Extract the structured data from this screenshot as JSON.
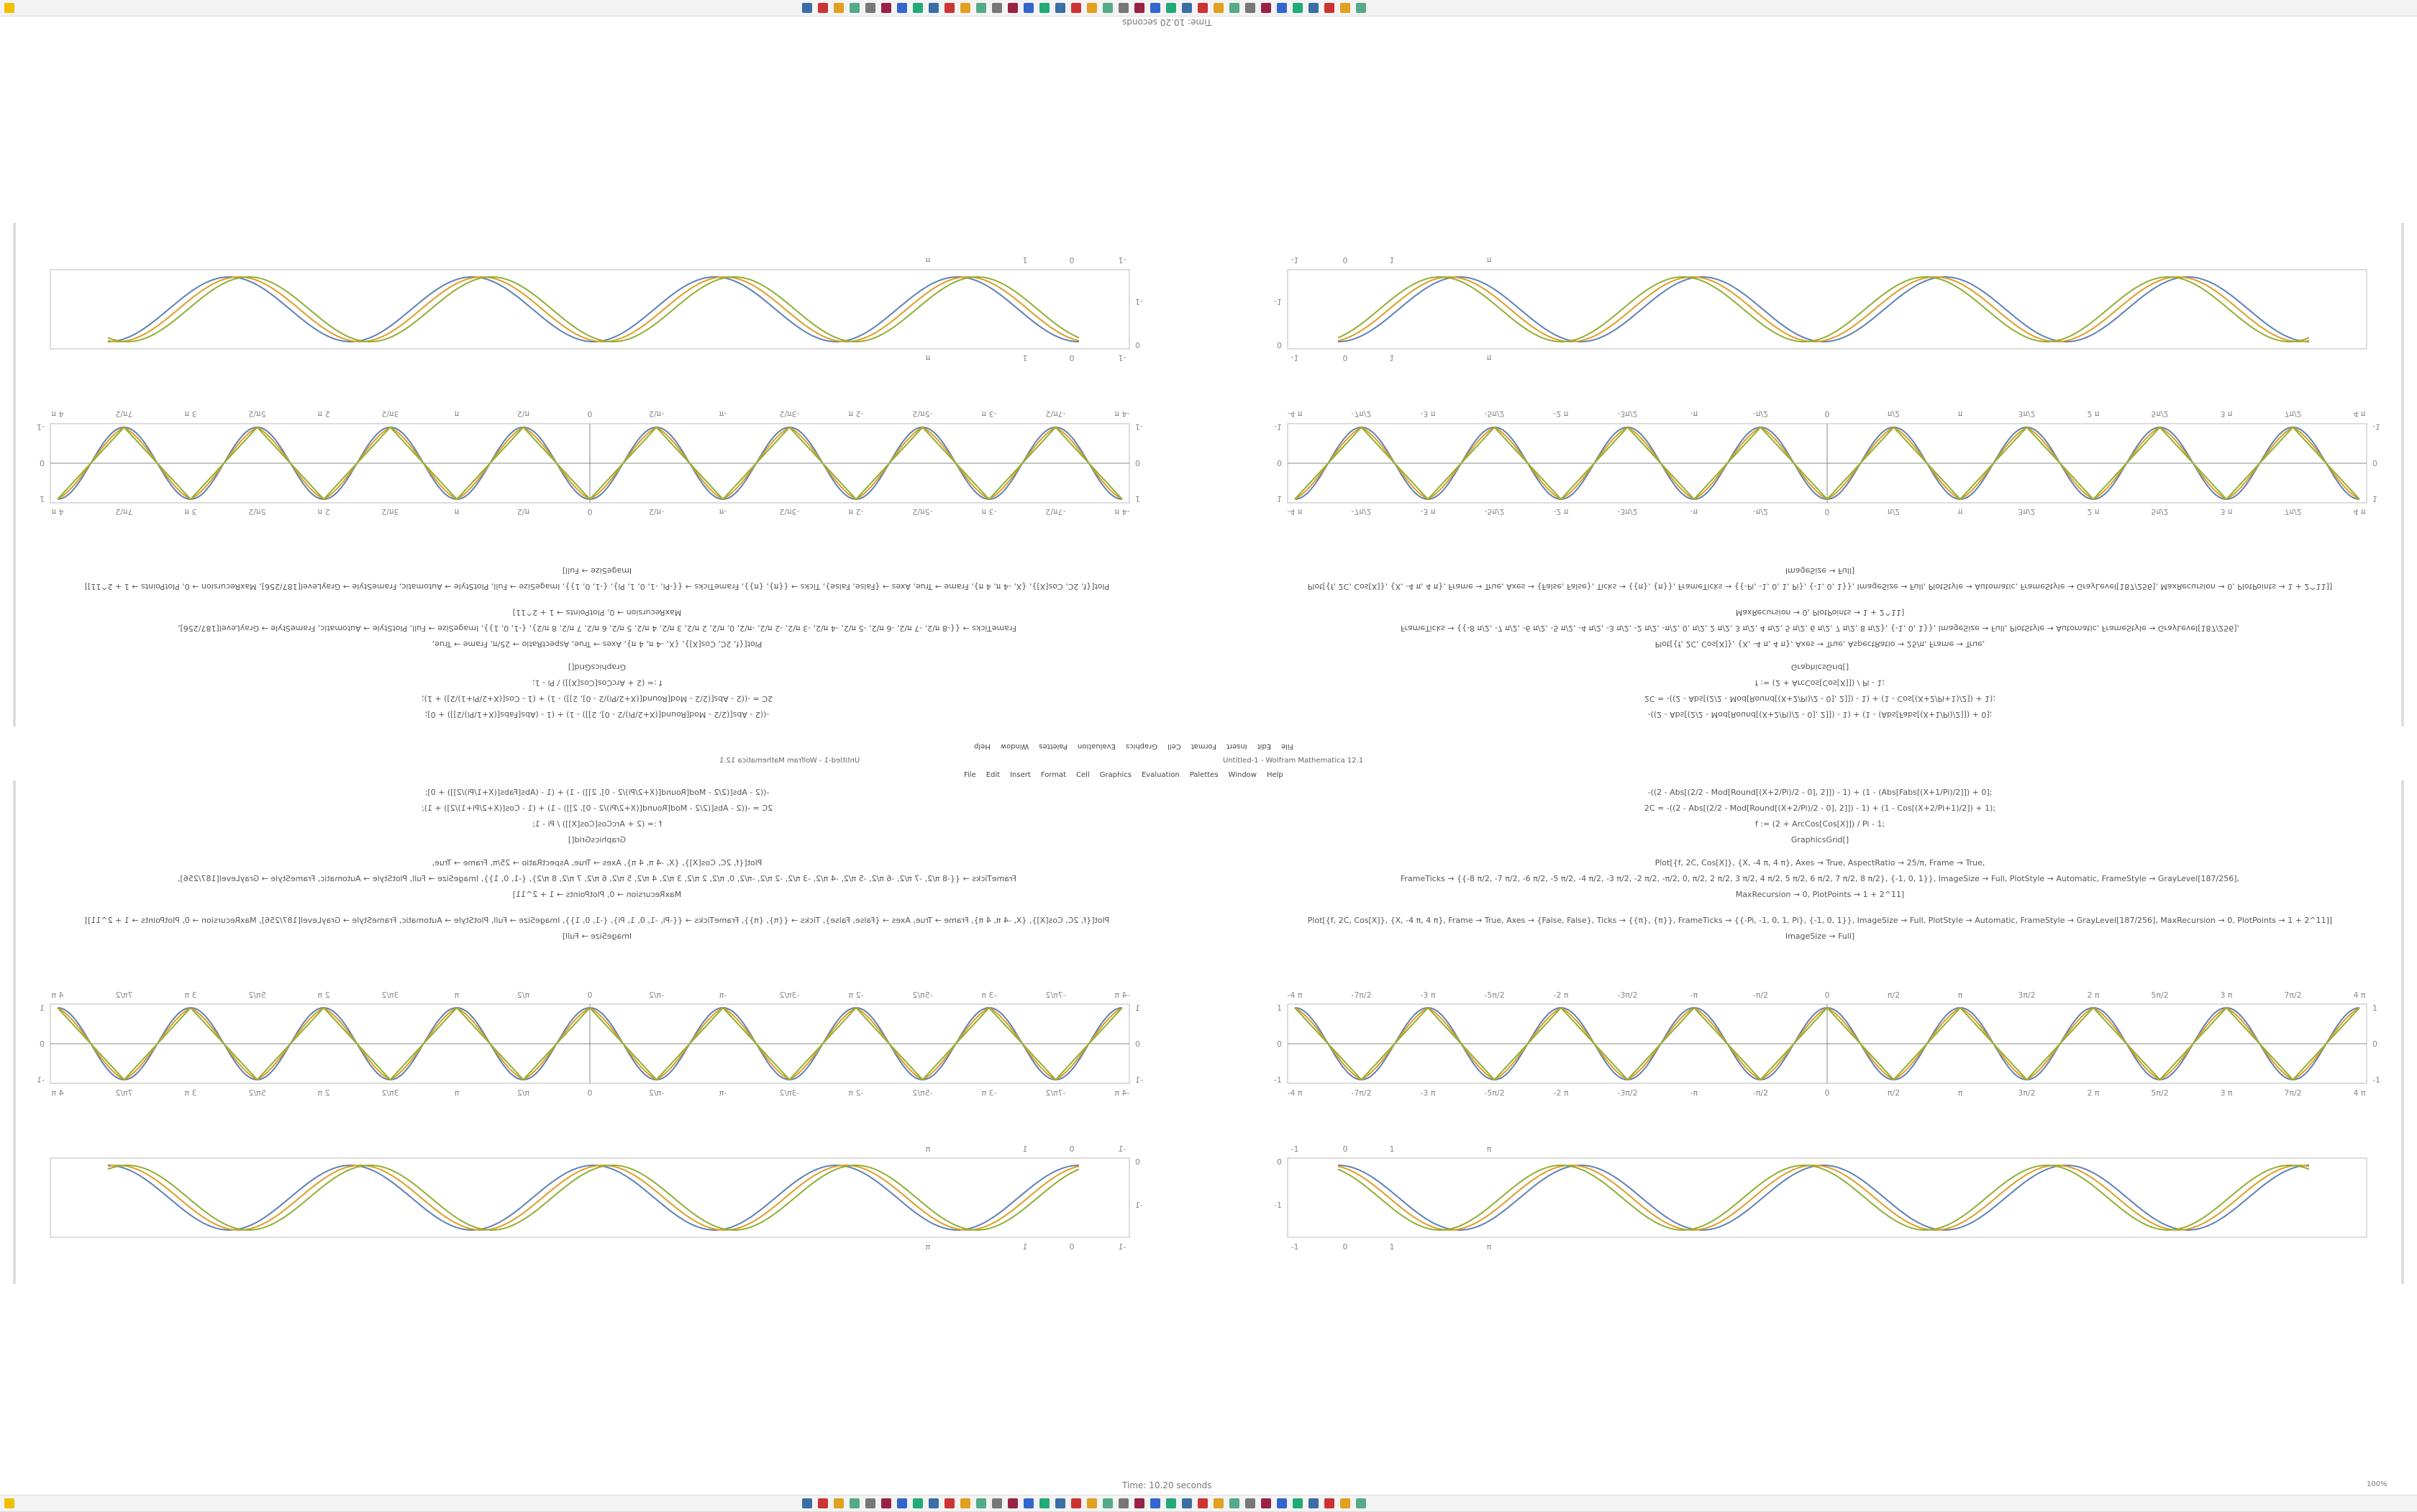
{
  "window": {
    "title": "Untitled-1 - Wolfram Mathematica 12.1",
    "menu": [
      "File",
      "Edit",
      "Insert",
      "Format",
      "Cell",
      "Graphics",
      "Evaluation",
      "Palettes",
      "Window",
      "Help"
    ]
  },
  "status": {
    "time": "Time: 10.20 seconds",
    "zoom": "100%"
  },
  "code": {
    "lines": [
      "-((2 - Abs[(2/2 - Mod[Round[(X+2/Pi)/2 - 0], 2]]) - 1) + (1 - (Abs[Fabs[(X+1/Pi)/2]]) + 0];",
      "2C = -((2 - Abs[(2/2 - Mod[Round[(X+2/Pi)/2 - 0], 2]]) - 1) + (1 - Cos[(X+2/Pi+1)/2]) + 1);",
      "f := (2 + ArcCos[Cos[X]]) / Pi - 1;",
      "GraphicsGrid[]",
      "Plot[{f, 2C, Cos[X]}, {X, -4 π, 4 π}, Axes → True, AspectRatio → 25/π, Frame → True,",
      "FrameTicks → {{-8 π/2, -7 π/2, -6 π/2, -5 π/2, -4 π/2, -3 π/2, -2 π/2, -π/2, 0, π/2, 2 π/2, 3 π/2, 4 π/2, 5 π/2, 6 π/2, 7 π/2, 8 π/2}, {-1, 0, 1}}, ImageSize → Full, PlotStyle → Automatic, FrameStyle → GrayLevel[187/256],",
      "MaxRecursion → 0, PlotPoints → 1 + 2^11]",
      "Plot[{f, 2C, Cos[X]}, {X, -4 π, 4 π}, Frame → True, Axes → {False, False}, Ticks → {{π}, {π}}, FrameTicks → {{-Pi, -1, 0, 1, Pi}, {-1, 0, 1}}, ImageSize → Full, PlotStyle → Automatic, FrameStyle → GrayLevel[187/256], MaxRecursion → 0, PlotPoints → 1 + 2^11]]",
      "ImageSize → Full]"
    ]
  },
  "plot1": {
    "xticks": [
      "-4 π",
      "-7π/2",
      "-3 π",
      "-5π/2",
      "-2 π",
      "-3π/2",
      "-π",
      "-π/2",
      "0",
      "π/2",
      "π",
      "3π/2",
      "2 π",
      "5π/2",
      "3 π",
      "7π/2",
      "4 π"
    ],
    "yticks": [
      "1",
      "0",
      "-1"
    ]
  },
  "plot2": {
    "xticks": [
      "-1",
      "0",
      "1",
      "π"
    ],
    "yticks": [
      "0",
      "-1"
    ]
  }
}
